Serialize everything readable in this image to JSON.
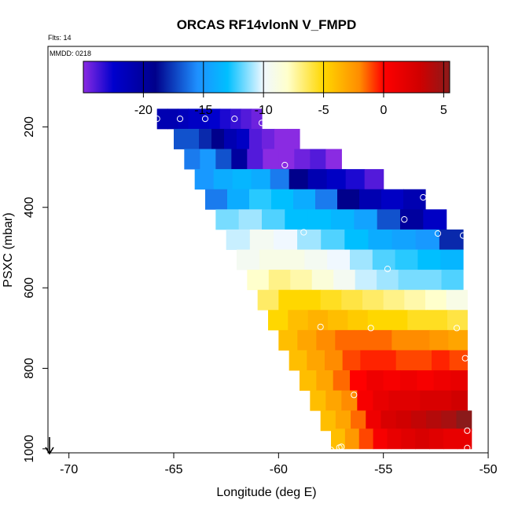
{
  "chart_data": {
    "type": "heatmap",
    "title": "ORCAS RF14vlonN V_FMPD",
    "flights_note": "Flts: 14",
    "date_note": "MMDD: 0218",
    "xlabel": "Longitude (deg E)",
    "ylabel": "PSXC (mbar)",
    "xlim": [
      -71,
      -50
    ],
    "ylim": [
      1010,
      0
    ],
    "x_ticks": [
      -70,
      -65,
      -60,
      -55,
      -50
    ],
    "y_ticks": [
      200,
      400,
      600,
      800,
      1000
    ],
    "colorbar": {
      "range": [
        -25,
        5.5
      ],
      "ticks": [
        -20,
        -15,
        -10,
        -5,
        0,
        5
      ],
      "stops": [
        {
          "v": -25,
          "c": "#8a2be2"
        },
        {
          "v": -22.5,
          "c": "#0000cd"
        },
        {
          "v": -19,
          "c": "#00008b"
        },
        {
          "v": -15.5,
          "c": "#1e90ff"
        },
        {
          "v": -13,
          "c": "#00bfff"
        },
        {
          "v": -10,
          "c": "#f0f8ff"
        },
        {
          "v": -8,
          "c": "#ffffcc"
        },
        {
          "v": -5,
          "c": "#ffd700"
        },
        {
          "v": -2,
          "c": "#ff8c00"
        },
        {
          "v": 0,
          "c": "#ff0000"
        },
        {
          "v": 3,
          "c": "#d00000"
        },
        {
          "v": 5.5,
          "c": "#8b1a1a"
        }
      ]
    },
    "cells": [
      {
        "p": 180,
        "x0": -65.8,
        "x1": -60.8,
        "v": [
          -21,
          -21,
          -21.5,
          -22,
          -22,
          -22.5,
          -23,
          -23.5,
          -24,
          -24.5
        ]
      },
      {
        "p": 230,
        "x0": -65.0,
        "x1": -59.0,
        "v": [
          -17,
          -17,
          -18,
          -19,
          -21,
          -22,
          -24,
          -24.5,
          -25,
          -25
        ]
      },
      {
        "p": 280,
        "x0": -64.5,
        "x1": -57.0,
        "v": [
          -16,
          -15,
          -17,
          -20,
          -24,
          -25,
          -25,
          -24.5,
          -24,
          -25
        ]
      },
      {
        "p": 330,
        "x0": -64.0,
        "x1": -55.0,
        "v": [
          -15,
          -14,
          -13.5,
          -14,
          -16,
          -19,
          -21,
          -22,
          -23,
          -24
        ]
      },
      {
        "p": 380,
        "x0": -63.5,
        "x1": -53.0,
        "v": [
          -16,
          -14,
          -12.5,
          -13,
          -14,
          -16,
          -19,
          -21,
          -22,
          -21
        ]
      },
      {
        "p": 430,
        "x0": -63.0,
        "x1": -52.0,
        "v": [
          -11.5,
          -11,
          -12,
          -13,
          -13,
          -13.5,
          -14.5,
          -17,
          -20,
          -22
        ]
      },
      {
        "p": 480,
        "x0": -62.5,
        "x1": -51.2,
        "v": [
          -10.5,
          -9.5,
          -10,
          -11,
          -12,
          -13,
          -14,
          -14.5,
          -15,
          -18
        ]
      },
      {
        "p": 530,
        "x0": -62.0,
        "x1": -51.2,
        "v": [
          -9.5,
          -9,
          -9,
          -9.5,
          -10,
          -11,
          -12,
          -12.5,
          -13,
          -13.5
        ]
      },
      {
        "p": 580,
        "x0": -61.5,
        "x1": -51.2,
        "v": [
          -8,
          -7,
          -7.5,
          -8.5,
          -9.5,
          -10.5,
          -11,
          -11.5,
          -11.5,
          -12
        ]
      },
      {
        "p": 630,
        "x0": -61.0,
        "x1": -51.0,
        "v": [
          -6.5,
          -5,
          -5,
          -5.5,
          -6,
          -6.5,
          -7,
          -7.5,
          -8,
          -9
        ]
      },
      {
        "p": 680,
        "x0": -60.5,
        "x1": -51.0,
        "v": [
          -5,
          -4,
          -3.5,
          -4,
          -4.5,
          -5,
          -5,
          -5.5,
          -5.5,
          -6
        ]
      },
      {
        "p": 730,
        "x0": -60.0,
        "x1": -51.0,
        "v": [
          -4,
          -3,
          -2,
          -1.5,
          -1.5,
          -1.5,
          -2,
          -2,
          -2.5,
          -3
        ]
      },
      {
        "p": 780,
        "x0": -59.5,
        "x1": -51.0,
        "v": [
          -4,
          -3,
          -2,
          -1,
          -0.5,
          -0.5,
          -1,
          -1,
          -0.5,
          -1
        ]
      },
      {
        "p": 830,
        "x0": -59.0,
        "x1": -51.0,
        "v": [
          -4,
          -3,
          -1.5,
          0,
          1,
          0.5,
          1,
          0.5,
          1,
          1.5
        ]
      },
      {
        "p": 880,
        "x0": -58.5,
        "x1": -51.0,
        "v": [
          -4,
          -3,
          -2,
          0.5,
          1.5,
          2,
          2,
          2.5,
          2.5,
          3
        ]
      },
      {
        "p": 930,
        "x0": -58.0,
        "x1": -50.8,
        "v": [
          -4,
          -3,
          -1.5,
          1,
          2.5,
          3,
          3.5,
          4,
          4.5,
          5.5
        ]
      },
      {
        "p": 975,
        "x0": -57.5,
        "x1": -50.8,
        "v": [
          -4,
          -2.5,
          -1,
          0.5,
          1.5,
          2,
          2.5,
          2,
          1.5,
          1.5
        ]
      }
    ],
    "circles": [
      {
        "x": -65.8,
        "p": 180
      },
      {
        "x": -64.7,
        "p": 180
      },
      {
        "x": -63.5,
        "p": 180
      },
      {
        "x": -62.1,
        "p": 180
      },
      {
        "x": -60.8,
        "p": 190
      },
      {
        "x": -59.7,
        "p": 295
      },
      {
        "x": -53.1,
        "p": 375
      },
      {
        "x": -54.0,
        "p": 430
      },
      {
        "x": -58.8,
        "p": 462
      },
      {
        "x": -52.4,
        "p": 465
      },
      {
        "x": -51.2,
        "p": 470
      },
      {
        "x": -54.8,
        "p": 553
      },
      {
        "x": -58.0,
        "p": 697
      },
      {
        "x": -55.6,
        "p": 700
      },
      {
        "x": -51.5,
        "p": 700
      },
      {
        "x": -51.1,
        "p": 775
      },
      {
        "x": -56.4,
        "p": 866
      },
      {
        "x": -51.0,
        "p": 955
      },
      {
        "x": -51.0,
        "p": 998
      },
      {
        "x": -57.1,
        "p": 997
      },
      {
        "x": -57.0,
        "p": 995
      },
      {
        "x": -57.5,
        "p": 1003
      }
    ]
  }
}
